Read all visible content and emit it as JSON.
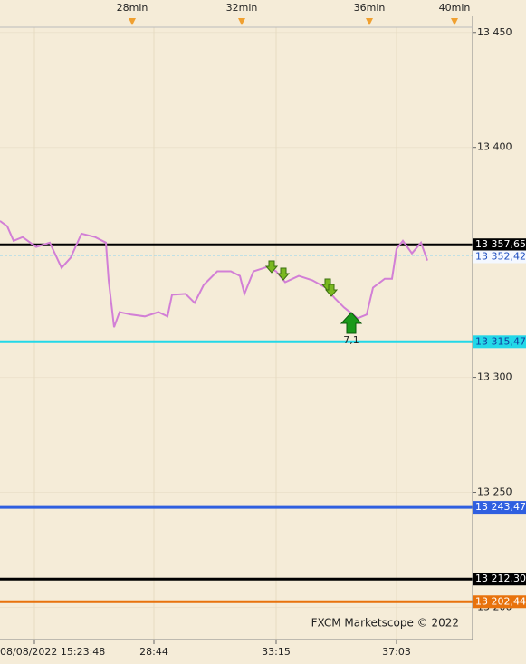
{
  "chart_data": {
    "type": "line",
    "color": "#d27fd6",
    "x": [
      0,
      1.6,
      3,
      5,
      8,
      11,
      13.6,
      15.6,
      18,
      21,
      23.4,
      24,
      25.2,
      26.4,
      29,
      32,
      35,
      37,
      38,
      41,
      43,
      45,
      48,
      51,
      53,
      54,
      56,
      59,
      61,
      63,
      66,
      69,
      72,
      74,
      76,
      79,
      81,
      82.4,
      85,
      86.6,
      87.6,
      89,
      91,
      93,
      94.4
    ],
    "values": [
      13368.0,
      13365.7,
      13359.4,
      13361.0,
      13356.7,
      13358.6,
      13347.6,
      13352.0,
      13362.5,
      13361.0,
      13358.6,
      13342.2,
      13321.8,
      13328.4,
      13327.3,
      13326.5,
      13328.4,
      13326.5,
      13335.9,
      13336.3,
      13332.4,
      13340.2,
      13346.1,
      13346.1,
      13344.1,
      13336.3,
      13346.1,
      13348.0,
      13346.1,
      13341.4,
      13344.1,
      13342.2,
      13339.0,
      13334.3,
      13330.4,
      13325.7,
      13327.3,
      13339.0,
      13342.9,
      13342.9,
      13355.9,
      13359.4,
      13353.9,
      13358.6,
      13350.8
    ],
    "xlim": [
      0,
      104.4
    ],
    "ylim": [
      13186,
      13457
    ],
    "yticks": [
      {
        "value": 13200,
        "label": "13 200"
      },
      {
        "value": 13250,
        "label": "13 250"
      },
      {
        "value": 13300,
        "label": "13 300"
      },
      {
        "value": 13400,
        "label": "13 400"
      },
      {
        "value": 13450,
        "label": "13 450"
      }
    ],
    "top_xticks": [
      {
        "value": 29.2,
        "label": "28min"
      },
      {
        "value": 53.4,
        "label": "32min"
      },
      {
        "value": 81.6,
        "label": "36min"
      },
      {
        "value": 100.4,
        "label": "40min"
      }
    ],
    "xticks": [
      {
        "value": 7.6,
        "label": "08/08/2022 15:23:48"
      },
      {
        "value": 34,
        "label": "28:44"
      },
      {
        "value": 61,
        "label": "33:15"
      },
      {
        "value": 87.6,
        "label": "37:03"
      }
    ],
    "levels": [
      {
        "value": 13357.65,
        "label": "13 357,65",
        "color": "#000000",
        "text_color": "#ffffff",
        "dashed": false
      },
      {
        "value": 13352.42,
        "label": "13 352,42",
        "color": "#8fd3f0",
        "text_color": "#2050c0",
        "dashed": true
      },
      {
        "value": 13315.47,
        "label": "13 315,47",
        "color": "#22d8e8",
        "text_color": "#1040a0",
        "dashed": false
      },
      {
        "value": 13243.47,
        "label": "13 243,47",
        "color": "#2f5fe0",
        "text_color": "#ffffff",
        "dashed": false
      },
      {
        "value": 13212.3,
        "label": "13 212,30",
        "color": "#000000",
        "text_color": "#ffffff",
        "dashed": false
      },
      {
        "value": 13202.44,
        "label": "13 202,44",
        "color": "#e8720c",
        "text_color": "#ffffff",
        "dashed": false
      }
    ],
    "annotation": "7,1",
    "watermark": "FXCM Marketscope © 2022",
    "grid": true
  }
}
